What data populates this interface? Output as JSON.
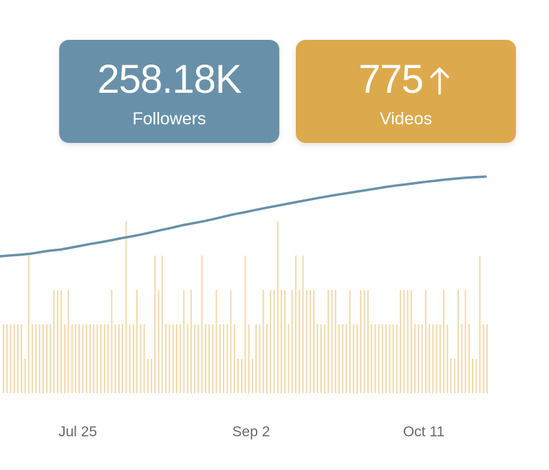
{
  "colors": {
    "followers_card": "#6891a9",
    "videos_card": "#dcaa4c",
    "followers_line": "#6891a9",
    "video_bars": "#f0d9a9"
  },
  "cards": {
    "followers": {
      "value": "258.18K",
      "label": "Followers"
    },
    "videos": {
      "value": "775",
      "label": "Videos",
      "trend_icon": "arrow-up-icon"
    }
  },
  "chart_data": {
    "type": "bar",
    "x_ticks": [
      "Jul 25",
      "Sep 2",
      "Oct 11"
    ],
    "bar_series": {
      "name": "Videos",
      "values": [
        2,
        2,
        2,
        2,
        2,
        2,
        1,
        4,
        2,
        2,
        2,
        2,
        2,
        2,
        3,
        3,
        3,
        2,
        3,
        2,
        2,
        2,
        2,
        2,
        2,
        2,
        2,
        2,
        2,
        2,
        3,
        2,
        2,
        2,
        5,
        2,
        2,
        3,
        2,
        2,
        1,
        1,
        4,
        3,
        4,
        2,
        2,
        2,
        2,
        2,
        3,
        2,
        3,
        2,
        2,
        4,
        2,
        2,
        2,
        3,
        2,
        2,
        2,
        3,
        2,
        1,
        1,
        4,
        2,
        1,
        2,
        2,
        3,
        2,
        3,
        3,
        5,
        3,
        3,
        2,
        3,
        4,
        3,
        4,
        3,
        3,
        3,
        2,
        2,
        2,
        3,
        3,
        3,
        2,
        2,
        2,
        3,
        2,
        2,
        3,
        3,
        3,
        2,
        2,
        2,
        2,
        2,
        2,
        2,
        2,
        3,
        3,
        3,
        3,
        2,
        2,
        2,
        3,
        2,
        2,
        2,
        2,
        3,
        2,
        1,
        1,
        3,
        2,
        3,
        2,
        1,
        1,
        4,
        2,
        2
      ]
    },
    "line_series": {
      "name": "Followers",
      "values": [
        0,
        0.5,
        1,
        1.6,
        2.6,
        3.6,
        4.2,
        5.4,
        6.6,
        7.8,
        8.8,
        10,
        11.3,
        12.4,
        13.6,
        15,
        16.4,
        17.8,
        19.3,
        20.5,
        21.7,
        23,
        24.5,
        26,
        27.2,
        28.5,
        29.8,
        31,
        32.2,
        33.4,
        34.6,
        35.8,
        36.9,
        38,
        39,
        40,
        41,
        42,
        43,
        43.9,
        44.7,
        45.5,
        46.3,
        47,
        47.7,
        48.3,
        48.9,
        49.3,
        49.6
      ]
    }
  }
}
